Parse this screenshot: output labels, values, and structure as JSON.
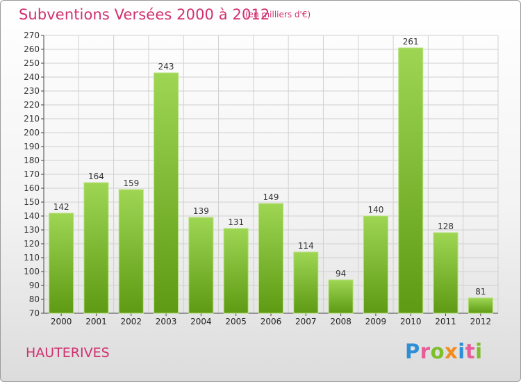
{
  "header": {
    "title": "Subventions Versées 2000 à 2012",
    "subtitle": "(en milliers d'€)"
  },
  "footer": {
    "location": "HAUTERIVES",
    "logo_text": "Proxiti"
  },
  "colors": {
    "title": "#d1306f",
    "bar_top": "#9ed653",
    "bar_bottom": "#5e9a14",
    "grid": "#d0d0d0"
  },
  "chart_data": {
    "type": "bar",
    "title": "Subventions Versées 2000 à 2012",
    "subtitle": "(en milliers d'€)",
    "xlabel": "",
    "ylabel": "",
    "categories": [
      "2000",
      "2001",
      "2002",
      "2003",
      "2004",
      "2005",
      "2006",
      "2007",
      "2008",
      "2009",
      "2010",
      "2011",
      "2012"
    ],
    "values": [
      142,
      164,
      159,
      243,
      139,
      131,
      149,
      114,
      94,
      140,
      261,
      128,
      81
    ],
    "ylim": [
      70,
      270
    ],
    "ytick_step": 10,
    "grid": true,
    "data_labels": true
  }
}
